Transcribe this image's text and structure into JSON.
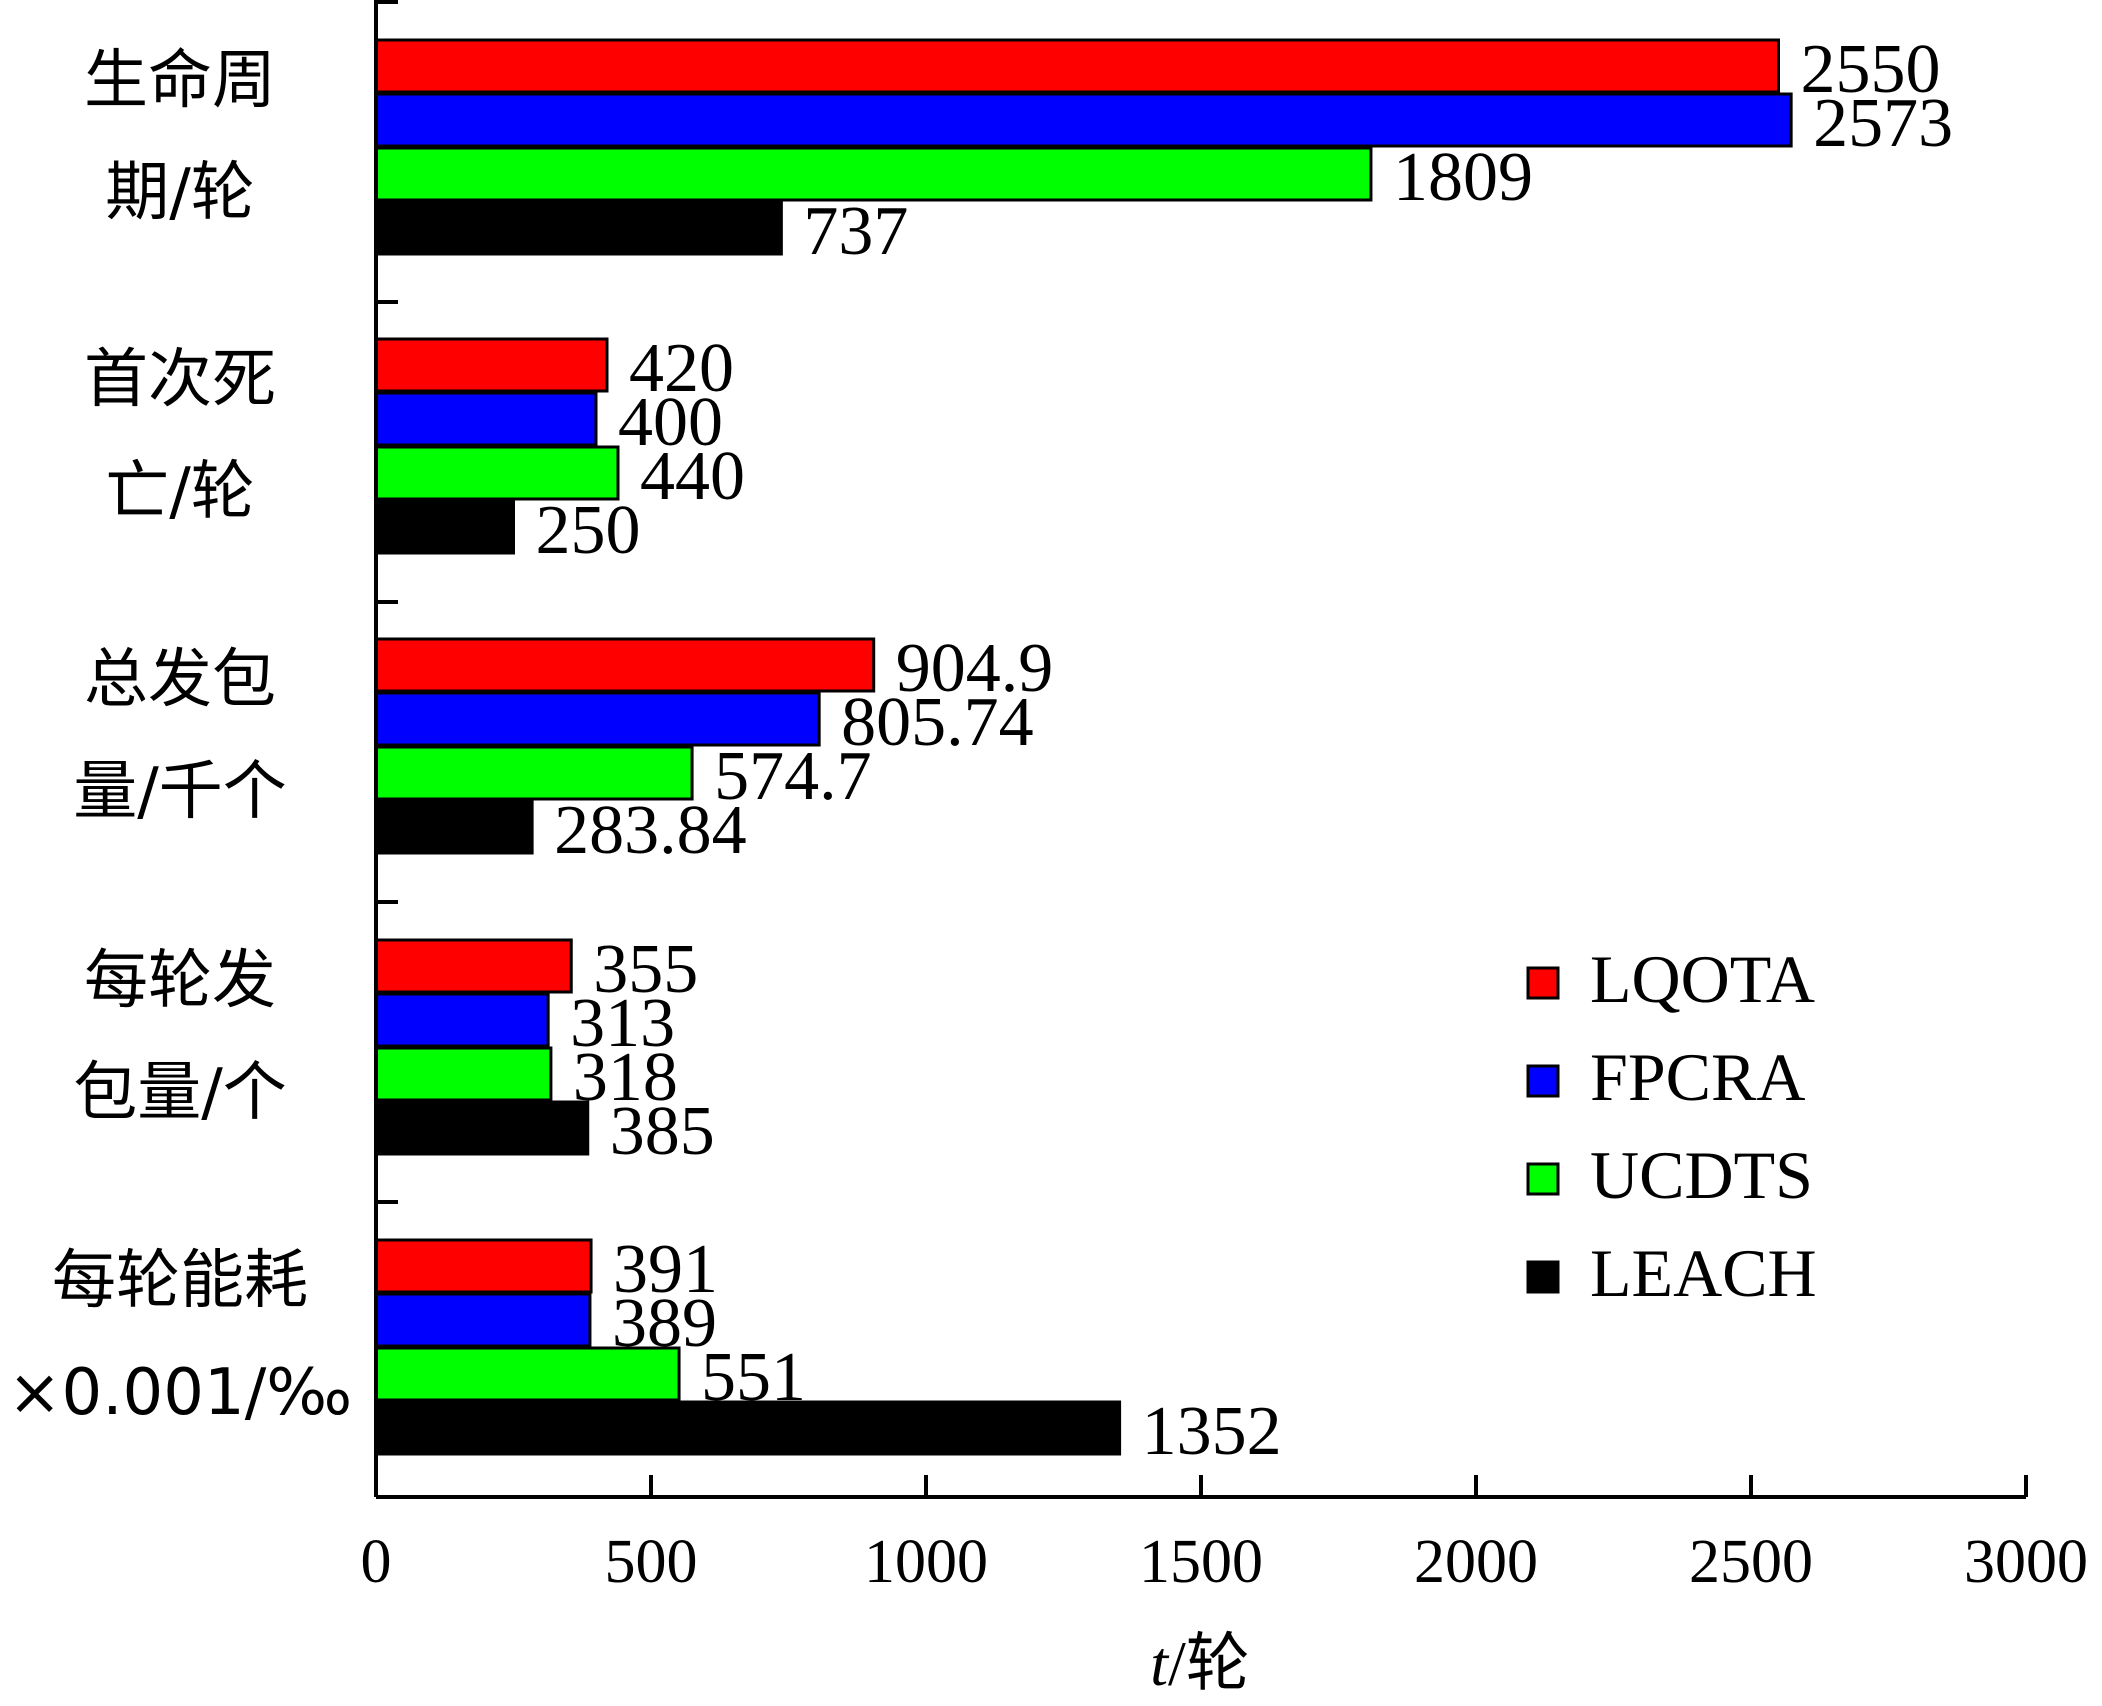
{
  "chart_data": {
    "type": "bar",
    "orientation": "horizontal",
    "categories": [
      [
        "生命周",
        "期/轮"
      ],
      [
        "首次死",
        "亡/轮"
      ],
      [
        "总发包",
        "量/千个"
      ],
      [
        "每轮发",
        "包量/个"
      ],
      [
        "每轮能耗",
        "×0.001/‰"
      ]
    ],
    "series": [
      {
        "name": "LQOTA",
        "color": "#ff0000",
        "values": [
          2550,
          420,
          904.9,
          355,
          391
        ],
        "labels": [
          "2550",
          "420",
          "904.9",
          "355",
          "391"
        ]
      },
      {
        "name": "FPCRA",
        "color": "#0000ff",
        "values": [
          2573,
          400,
          805.74,
          313,
          389
        ],
        "labels": [
          "2573",
          "400",
          "805.74",
          "313",
          "389"
        ]
      },
      {
        "name": "UCDTS",
        "color": "#00ff00",
        "values": [
          1809,
          440,
          574.7,
          318,
          551
        ],
        "labels": [
          "1809",
          "440",
          "574.7",
          "318",
          "551"
        ]
      },
      {
        "name": "LEACH",
        "color": "#000000",
        "values": [
          737,
          250,
          283.84,
          385,
          1352
        ],
        "labels": [
          "737",
          "250",
          "283.84",
          "385",
          "1352"
        ]
      }
    ],
    "xlim": [
      0,
      3000
    ],
    "xticks": [
      "0",
      "500",
      "1000",
      "1500",
      "2000",
      "2500",
      "3000"
    ],
    "xlabel_italic": "t",
    "xlabel_rest": "/轮",
    "legend_position": "right"
  }
}
